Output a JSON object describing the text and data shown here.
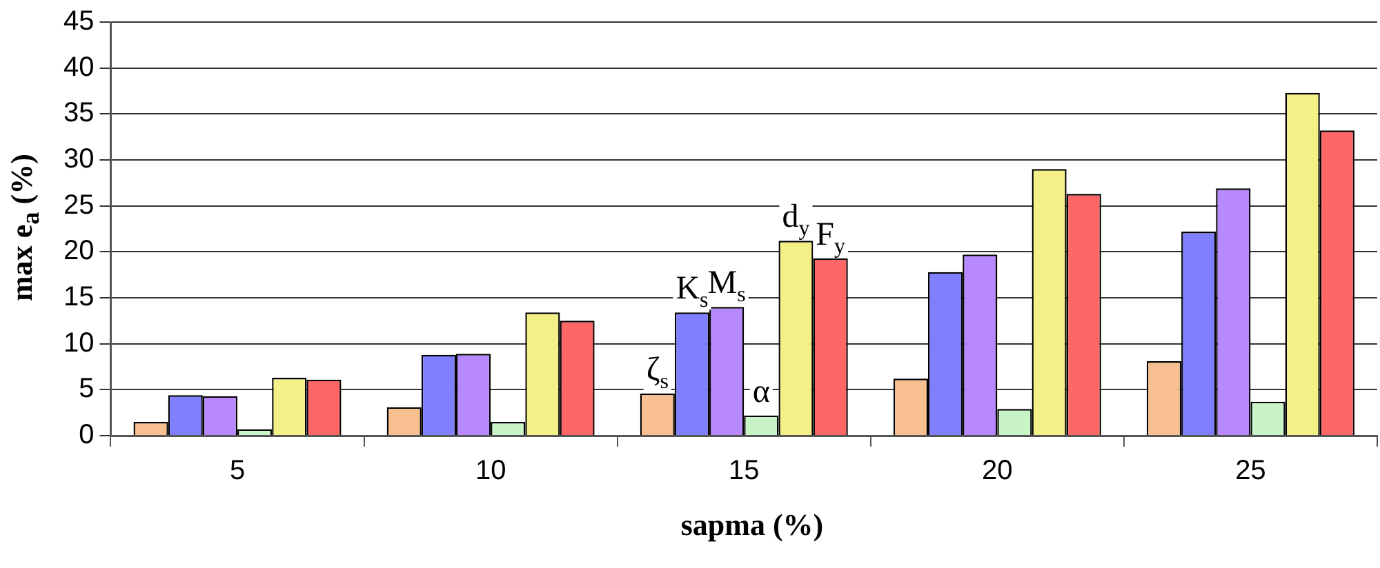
{
  "chart_data": {
    "type": "bar",
    "xlabel": "sapma (%)",
    "ylabel": "max e$_{a}$ (%)",
    "categories": [
      "5",
      "10",
      "15",
      "20",
      "25"
    ],
    "series": [
      {
        "name": "ζ$_{s}$",
        "color": "#f8c090",
        "values": [
          1.5,
          3.1,
          4.6,
          6.2,
          8.1
        ]
      },
      {
        "name": "K$_{s}$",
        "color": "#8080ff",
        "values": [
          4.4,
          8.8,
          13.4,
          17.8,
          22.2
        ]
      },
      {
        "name": "M$_{s}$",
        "color": "#b888ff",
        "values": [
          4.3,
          8.9,
          14.0,
          19.7,
          26.9
        ]
      },
      {
        "name": "α",
        "color": "#c8f4c8",
        "values": [
          0.7,
          1.5,
          2.2,
          2.9,
          3.7
        ]
      },
      {
        "name": "d$_{y}$",
        "color": "#f4f088",
        "values": [
          6.3,
          13.4,
          21.2,
          29.0,
          37.3
        ]
      },
      {
        "name": "F$_{y}$",
        "color": "#ff6666",
        "values": [
          6.1,
          12.5,
          19.3,
          26.3,
          33.2
        ]
      }
    ],
    "ylim": [
      0,
      45
    ],
    "yticks": [
      0,
      5,
      10,
      15,
      20,
      25,
      30,
      35,
      40,
      45
    ],
    "grid": "y",
    "legend": false
  }
}
